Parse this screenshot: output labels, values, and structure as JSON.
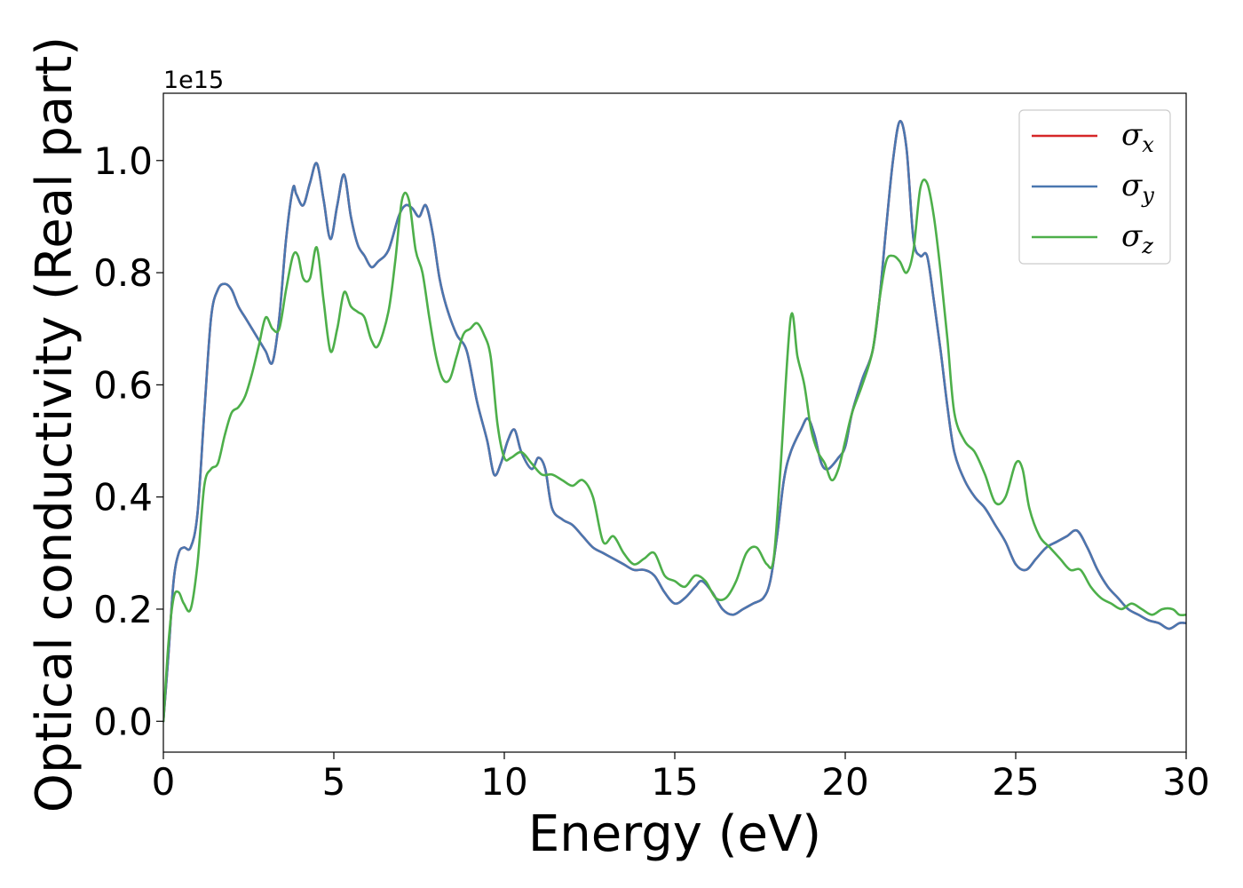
{
  "chart_data": {
    "type": "line",
    "title": "",
    "xlabel": "Energy (eV)",
    "ylabel": "Optical conductivity (Real part)",
    "y_offset_text": "1e15",
    "y_scale_factor": 1000000000000000.0,
    "xlim": [
      0,
      30
    ],
    "ylim": [
      -0.055,
      1.12
    ],
    "x_ticks": [
      0,
      5,
      10,
      15,
      20,
      25,
      30
    ],
    "x_tick_labels": [
      "0",
      "5",
      "10",
      "15",
      "20",
      "25",
      "30"
    ],
    "y_ticks": [
      0.0,
      0.2,
      0.4,
      0.6,
      0.8,
      1.0
    ],
    "y_tick_labels": [
      "0.0",
      "0.2",
      "0.4",
      "0.6",
      "0.8",
      "1.0"
    ],
    "grid": false,
    "legend_position": "top-right",
    "series": [
      {
        "name": "σ",
        "subscript": "x",
        "color": "#d62728",
        "x": [
          0,
          0.15,
          0.3,
          0.45,
          0.6,
          0.8,
          1.0,
          1.2,
          1.4,
          1.6,
          1.8,
          2.0,
          2.2,
          2.4,
          2.6,
          2.8,
          3.0,
          3.2,
          3.4,
          3.6,
          3.8,
          3.9,
          4.1,
          4.3,
          4.5,
          4.7,
          4.9,
          5.1,
          5.3,
          5.5,
          5.7,
          5.9,
          6.1,
          6.3,
          6.6,
          6.9,
          7.1,
          7.3,
          7.5,
          7.7,
          7.9,
          8.1,
          8.3,
          8.6,
          8.9,
          9.2,
          9.5,
          9.7,
          9.9,
          10.1,
          10.3,
          10.5,
          10.8,
          11.0,
          11.2,
          11.4,
          11.7,
          12.0,
          12.3,
          12.6,
          12.9,
          13.2,
          13.5,
          13.8,
          14.1,
          14.4,
          14.7,
          15.0,
          15.3,
          15.6,
          15.8,
          16.1,
          16.4,
          16.7,
          17.0,
          17.3,
          17.6,
          17.8,
          18.0,
          18.2,
          18.4,
          18.7,
          18.9,
          19.1,
          19.3,
          19.5,
          19.8,
          20.0,
          20.2,
          20.5,
          20.8,
          21.0,
          21.2,
          21.4,
          21.6,
          21.8,
          22.0,
          22.2,
          22.4,
          22.6,
          22.8,
          23.0,
          23.2,
          23.5,
          23.8,
          24.1,
          24.4,
          24.7,
          25.0,
          25.3,
          25.6,
          25.9,
          26.2,
          26.5,
          26.8,
          27.1,
          27.4,
          27.7,
          28.0,
          28.3,
          28.6,
          28.9,
          29.2,
          29.5,
          29.8,
          30.0
        ],
        "y": [
          0.0,
          0.12,
          0.25,
          0.3,
          0.31,
          0.31,
          0.37,
          0.55,
          0.72,
          0.77,
          0.78,
          0.77,
          0.74,
          0.72,
          0.7,
          0.68,
          0.66,
          0.64,
          0.72,
          0.86,
          0.95,
          0.94,
          0.92,
          0.96,
          0.995,
          0.93,
          0.86,
          0.92,
          0.975,
          0.9,
          0.85,
          0.83,
          0.81,
          0.82,
          0.84,
          0.9,
          0.92,
          0.915,
          0.9,
          0.92,
          0.87,
          0.79,
          0.74,
          0.69,
          0.66,
          0.57,
          0.5,
          0.44,
          0.46,
          0.5,
          0.52,
          0.48,
          0.45,
          0.47,
          0.45,
          0.38,
          0.36,
          0.35,
          0.33,
          0.31,
          0.3,
          0.29,
          0.28,
          0.27,
          0.27,
          0.26,
          0.23,
          0.21,
          0.22,
          0.24,
          0.25,
          0.23,
          0.2,
          0.19,
          0.2,
          0.21,
          0.22,
          0.25,
          0.33,
          0.43,
          0.48,
          0.52,
          0.54,
          0.51,
          0.46,
          0.45,
          0.47,
          0.49,
          0.55,
          0.61,
          0.66,
          0.75,
          0.88,
          1.0,
          1.07,
          1.02,
          0.86,
          0.83,
          0.83,
          0.75,
          0.66,
          0.56,
          0.48,
          0.43,
          0.4,
          0.38,
          0.35,
          0.32,
          0.28,
          0.27,
          0.29,
          0.31,
          0.32,
          0.33,
          0.34,
          0.31,
          0.27,
          0.24,
          0.22,
          0.2,
          0.19,
          0.18,
          0.175,
          0.165,
          0.175,
          0.175
        ]
      },
      {
        "name": "σ",
        "subscript": "y",
        "color": "#4a77b0",
        "x": [
          0,
          0.15,
          0.3,
          0.45,
          0.6,
          0.8,
          1.0,
          1.2,
          1.4,
          1.6,
          1.8,
          2.0,
          2.2,
          2.4,
          2.6,
          2.8,
          3.0,
          3.2,
          3.4,
          3.6,
          3.8,
          3.9,
          4.1,
          4.3,
          4.5,
          4.7,
          4.9,
          5.1,
          5.3,
          5.5,
          5.7,
          5.9,
          6.1,
          6.3,
          6.6,
          6.9,
          7.1,
          7.3,
          7.5,
          7.7,
          7.9,
          8.1,
          8.3,
          8.6,
          8.9,
          9.2,
          9.5,
          9.7,
          9.9,
          10.1,
          10.3,
          10.5,
          10.8,
          11.0,
          11.2,
          11.4,
          11.7,
          12.0,
          12.3,
          12.6,
          12.9,
          13.2,
          13.5,
          13.8,
          14.1,
          14.4,
          14.7,
          15.0,
          15.3,
          15.6,
          15.8,
          16.1,
          16.4,
          16.7,
          17.0,
          17.3,
          17.6,
          17.8,
          18.0,
          18.2,
          18.4,
          18.7,
          18.9,
          19.1,
          19.3,
          19.5,
          19.8,
          20.0,
          20.2,
          20.5,
          20.8,
          21.0,
          21.2,
          21.4,
          21.6,
          21.8,
          22.0,
          22.2,
          22.4,
          22.6,
          22.8,
          23.0,
          23.2,
          23.5,
          23.8,
          24.1,
          24.4,
          24.7,
          25.0,
          25.3,
          25.6,
          25.9,
          26.2,
          26.5,
          26.8,
          27.1,
          27.4,
          27.7,
          28.0,
          28.3,
          28.6,
          28.9,
          29.2,
          29.5,
          29.8,
          30.0
        ],
        "y": [
          0.0,
          0.12,
          0.25,
          0.3,
          0.31,
          0.31,
          0.37,
          0.55,
          0.72,
          0.77,
          0.78,
          0.77,
          0.74,
          0.72,
          0.7,
          0.68,
          0.66,
          0.64,
          0.72,
          0.86,
          0.95,
          0.94,
          0.92,
          0.96,
          0.995,
          0.93,
          0.86,
          0.92,
          0.975,
          0.9,
          0.85,
          0.83,
          0.81,
          0.82,
          0.84,
          0.9,
          0.92,
          0.915,
          0.9,
          0.92,
          0.87,
          0.79,
          0.74,
          0.69,
          0.66,
          0.57,
          0.5,
          0.44,
          0.46,
          0.5,
          0.52,
          0.48,
          0.45,
          0.47,
          0.45,
          0.38,
          0.36,
          0.35,
          0.33,
          0.31,
          0.3,
          0.29,
          0.28,
          0.27,
          0.27,
          0.26,
          0.23,
          0.21,
          0.22,
          0.24,
          0.25,
          0.23,
          0.2,
          0.19,
          0.2,
          0.21,
          0.22,
          0.25,
          0.33,
          0.43,
          0.48,
          0.52,
          0.54,
          0.51,
          0.46,
          0.45,
          0.47,
          0.49,
          0.55,
          0.61,
          0.66,
          0.75,
          0.88,
          1.0,
          1.07,
          1.02,
          0.86,
          0.83,
          0.83,
          0.75,
          0.66,
          0.56,
          0.48,
          0.43,
          0.4,
          0.38,
          0.35,
          0.32,
          0.28,
          0.27,
          0.29,
          0.31,
          0.32,
          0.33,
          0.34,
          0.31,
          0.27,
          0.24,
          0.22,
          0.2,
          0.19,
          0.18,
          0.175,
          0.165,
          0.175,
          0.175
        ]
      },
      {
        "name": "σ",
        "subscript": "z",
        "color": "#4daf4a",
        "x": [
          0,
          0.15,
          0.3,
          0.45,
          0.6,
          0.8,
          1.0,
          1.2,
          1.4,
          1.6,
          1.8,
          2.0,
          2.2,
          2.4,
          2.6,
          2.8,
          3.0,
          3.2,
          3.4,
          3.6,
          3.8,
          3.95,
          4.1,
          4.3,
          4.5,
          4.7,
          4.9,
          5.1,
          5.3,
          5.5,
          5.7,
          5.9,
          6.1,
          6.3,
          6.6,
          6.8,
          7.0,
          7.2,
          7.4,
          7.6,
          7.8,
          8.0,
          8.2,
          8.4,
          8.6,
          8.8,
          9.0,
          9.2,
          9.4,
          9.6,
          9.8,
          10.0,
          10.2,
          10.5,
          10.8,
          11.1,
          11.4,
          11.7,
          12.0,
          12.3,
          12.6,
          12.9,
          13.2,
          13.5,
          13.8,
          14.1,
          14.4,
          14.7,
          15.0,
          15.3,
          15.6,
          15.9,
          16.2,
          16.5,
          16.8,
          17.1,
          17.4,
          17.7,
          17.9,
          18.1,
          18.4,
          18.6,
          18.8,
          19.0,
          19.2,
          19.4,
          19.6,
          19.8,
          20.0,
          20.2,
          20.5,
          20.8,
          21.0,
          21.2,
          21.4,
          21.6,
          21.8,
          22.0,
          22.2,
          22.4,
          22.6,
          22.8,
          23.0,
          23.2,
          23.5,
          23.8,
          24.1,
          24.4,
          24.7,
          25.0,
          25.2,
          25.4,
          25.7,
          26.0,
          26.3,
          26.6,
          26.9,
          27.2,
          27.5,
          27.8,
          28.1,
          28.4,
          28.7,
          29.0,
          29.3,
          29.6,
          29.8,
          30.0
        ],
        "y": [
          0.0,
          0.14,
          0.22,
          0.23,
          0.21,
          0.2,
          0.28,
          0.42,
          0.45,
          0.46,
          0.51,
          0.55,
          0.56,
          0.58,
          0.62,
          0.67,
          0.72,
          0.7,
          0.7,
          0.77,
          0.83,
          0.83,
          0.79,
          0.79,
          0.845,
          0.75,
          0.66,
          0.7,
          0.765,
          0.74,
          0.73,
          0.72,
          0.68,
          0.67,
          0.73,
          0.82,
          0.93,
          0.93,
          0.84,
          0.8,
          0.72,
          0.65,
          0.61,
          0.61,
          0.65,
          0.69,
          0.7,
          0.71,
          0.69,
          0.65,
          0.53,
          0.47,
          0.47,
          0.48,
          0.46,
          0.44,
          0.44,
          0.43,
          0.42,
          0.43,
          0.4,
          0.32,
          0.33,
          0.3,
          0.28,
          0.29,
          0.3,
          0.26,
          0.25,
          0.24,
          0.26,
          0.25,
          0.22,
          0.22,
          0.25,
          0.3,
          0.31,
          0.28,
          0.29,
          0.45,
          0.72,
          0.65,
          0.6,
          0.52,
          0.48,
          0.46,
          0.43,
          0.45,
          0.5,
          0.55,
          0.6,
          0.66,
          0.75,
          0.82,
          0.83,
          0.82,
          0.8,
          0.84,
          0.95,
          0.96,
          0.9,
          0.8,
          0.68,
          0.55,
          0.5,
          0.48,
          0.44,
          0.39,
          0.4,
          0.46,
          0.45,
          0.38,
          0.33,
          0.31,
          0.29,
          0.27,
          0.27,
          0.24,
          0.22,
          0.21,
          0.2,
          0.21,
          0.2,
          0.19,
          0.2,
          0.2,
          0.19,
          0.19
        ]
      }
    ]
  }
}
